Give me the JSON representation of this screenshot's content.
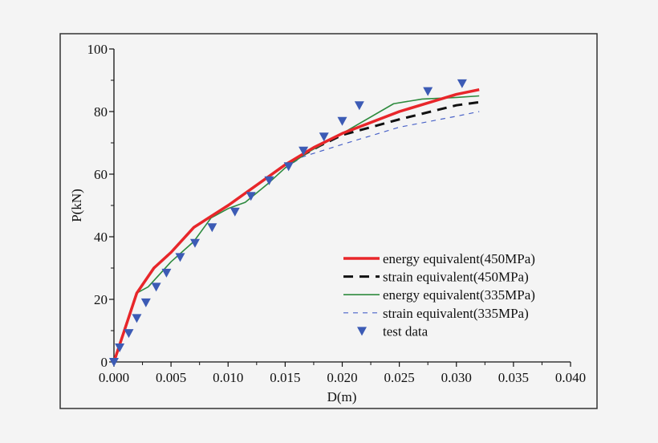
{
  "chart_data": {
    "type": "line",
    "title": "",
    "xlabel": "D(m)",
    "ylabel": "P(kN)",
    "xlim": [
      0,
      0.04
    ],
    "ylim": [
      0,
      100
    ],
    "xticks": [
      "0.000",
      "0.005",
      "0.010",
      "0.015",
      "0.020",
      "0.025",
      "0.030",
      "0.035",
      "0.040"
    ],
    "yticks": [
      "0",
      "20",
      "40",
      "60",
      "80",
      "100"
    ],
    "grid": false,
    "legend": "bottom-right",
    "series": [
      {
        "name": "energy equivalent(450MPa)",
        "color": "#e8262a",
        "style": "solid-thick",
        "x": [
          0,
          0.002,
          0.0035,
          0.005,
          0.007,
          0.01,
          0.015,
          0.0175,
          0.02,
          0.025,
          0.03,
          0.032
        ],
        "y": [
          0,
          22,
          30,
          35,
          43,
          50,
          63,
          68.5,
          73,
          80,
          85.5,
          87
        ]
      },
      {
        "name": "strain equivalent(450MPa)",
        "color": "#111111",
        "style": "dashed-thick",
        "x": [
          0,
          0.002,
          0.0035,
          0.005,
          0.007,
          0.01,
          0.015,
          0.0165,
          0.018,
          0.02,
          0.025,
          0.03,
          0.032
        ],
        "y": [
          0,
          22,
          30,
          35,
          43,
          50,
          63,
          66,
          69,
          72.5,
          77.5,
          82,
          83
        ]
      },
      {
        "name": "energy equivalent(335MPa)",
        "color": "#2e8b3e",
        "style": "solid-thin",
        "x": [
          0,
          0.002,
          0.003,
          0.005,
          0.007,
          0.0085,
          0.01,
          0.0115,
          0.0135,
          0.015,
          0.017,
          0.02,
          0.0245,
          0.027,
          0.03,
          0.032
        ],
        "y": [
          0,
          22,
          24,
          32,
          38.5,
          46,
          49,
          51,
          57,
          62,
          67,
          73,
          82.5,
          84,
          84.5,
          85
        ]
      },
      {
        "name": "strain equivalent(335MPa)",
        "color": "#4a63c8",
        "style": "dashed-thin",
        "x": [
          0,
          0.002,
          0.003,
          0.005,
          0.007,
          0.0085,
          0.01,
          0.0115,
          0.0135,
          0.015,
          0.0165,
          0.02,
          0.025,
          0.03,
          0.032
        ],
        "y": [
          0,
          22,
          24,
          32,
          38.5,
          46,
          49,
          51,
          57,
          62,
          65.5,
          69.5,
          75,
          78.5,
          80
        ]
      },
      {
        "name": "test data",
        "color": "#3c5bb5",
        "style": "marker-triangle-down",
        "x": [
          0,
          0.0005,
          0.0013,
          0.002,
          0.0028,
          0.0037,
          0.0046,
          0.0058,
          0.0071,
          0.0086,
          0.0106,
          0.012,
          0.0136,
          0.0153,
          0.0166,
          0.0184,
          0.02,
          0.0215,
          0.0275,
          0.0305
        ],
        "y": [
          0,
          4.6,
          9.2,
          14,
          19,
          24,
          28.5,
          33.5,
          38,
          43,
          48,
          53,
          58,
          62.5,
          67.5,
          72,
          77,
          82,
          86.5,
          89
        ]
      }
    ]
  }
}
